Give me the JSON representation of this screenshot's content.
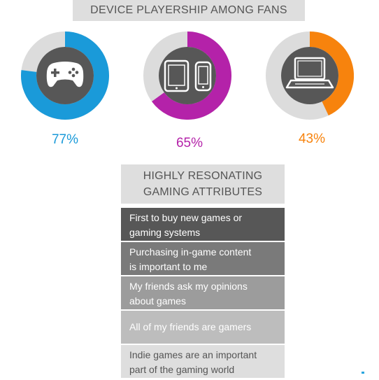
{
  "title": "DEVICE PLAYERSHIP AMONG FANS",
  "chart_data": {
    "type": "pie",
    "title": "DEVICE PLAYERSHIP AMONG FANS",
    "series": [
      {
        "icon": "gamepad-icon",
        "value": 77,
        "label": "77%",
        "color": "#1a9ad9"
      },
      {
        "icon": "tablet-phone-icon",
        "value": 65,
        "label": "65%",
        "color": "#b422a9"
      },
      {
        "icon": "laptop-icon",
        "value": 43,
        "label": "43%",
        "color": "#f7830d"
      }
    ],
    "track_color": "#dcdcdc",
    "center_color": "#575757"
  },
  "attributes": {
    "header_line1": "HIGHLY RESONATING",
    "header_line2": "GAMING ATTRIBUTES",
    "items": [
      {
        "line1": "First to buy new games or",
        "line2": "gaming systems",
        "bg": "#575757",
        "fg": "#ffffff"
      },
      {
        "line1": "Purchasing in-game content",
        "line2": "is important to me",
        "bg": "#7a7a7a",
        "fg": "#ffffff"
      },
      {
        "line1": "My friends ask my opinions",
        "line2": "about games",
        "bg": "#9c9c9c",
        "fg": "#ffffff"
      },
      {
        "line1": "All of my friends are gamers",
        "line2": "",
        "bg": "#bdbdbd",
        "fg": "#ffffff"
      },
      {
        "line1": "Indie games are an important",
        "line2": "part of the gaming world",
        "bg": "#dedede",
        "fg": "#555555"
      }
    ]
  }
}
